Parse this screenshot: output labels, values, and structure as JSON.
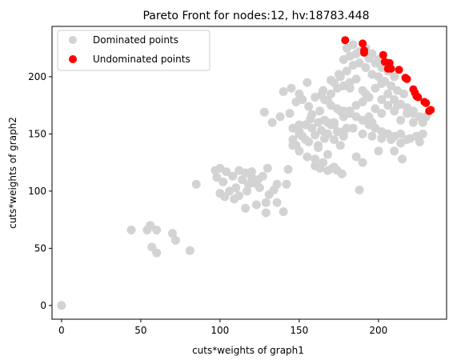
{
  "chart_data": {
    "type": "scatter",
    "title": "Pareto Front for nodes:12, hv:18783.448",
    "xlabel": "cuts*weights of graph1",
    "ylabel": "cuts*weights of graph2",
    "xlim": [
      -6,
      243
    ],
    "ylim": [
      -12,
      244
    ],
    "xticks": [
      0,
      50,
      100,
      150,
      200
    ],
    "yticks": [
      0,
      50,
      100,
      150,
      200
    ],
    "grid": false,
    "legend_position": "top-left",
    "colors": {
      "dominated": "#d3d3d3",
      "undominated": "#ff0000"
    },
    "series": [
      {
        "name": "Dominated points",
        "color": "#d3d3d3",
        "x": [
          0,
          44,
          54,
          56,
          60,
          57,
          60,
          70,
          72,
          81,
          85,
          97,
          98,
          100,
          102,
          104,
          106,
          108,
          110,
          112,
          114,
          116,
          118,
          120,
          100,
          103,
          109,
          112,
          117,
          122,
          125,
          127,
          129,
          131,
          134,
          136,
          120,
          124,
          130,
          143,
          116,
          123,
          129,
          136,
          140,
          142,
          144,
          146,
          148,
          150,
          152,
          154,
          156,
          158,
          160,
          162,
          164,
          166,
          168,
          170,
          172,
          174,
          176,
          178,
          180,
          146,
          150,
          155,
          160,
          162,
          165,
          168,
          171,
          160,
          163,
          168,
          172,
          177,
          174,
          150,
          157,
          163,
          172,
          178,
          182,
          186,
          190,
          194,
          198,
          202,
          206,
          210,
          214,
          218,
          222,
          226,
          166,
          170,
          174,
          178,
          182,
          186,
          190,
          194,
          198,
          202,
          206,
          210,
          214,
          218,
          222,
          176,
          180,
          184,
          188,
          192,
          196,
          200,
          204,
          208,
          212,
          216,
          178,
          182,
          186,
          190,
          194,
          198,
          202,
          206,
          210,
          180,
          184,
          188,
          192,
          196,
          200,
          204,
          170,
          174,
          178,
          182,
          186,
          190,
          194,
          198,
          202,
          206,
          210,
          214,
          218,
          224,
          228,
          166,
          172,
          178,
          184,
          190,
          196,
          202,
          208,
          214,
          220,
          226,
          172,
          182,
          192,
          202,
          212,
          222,
          230,
          228,
          186,
          176,
          190,
          165,
          170,
          175,
          188,
          210,
          215,
          128,
          133,
          138,
          155,
          140,
          145,
          150,
          148,
          152,
          160,
          164,
          168,
          156,
          146,
          158,
          168,
          150,
          154,
          162,
          196,
          200
        ],
        "y": [
          0,
          66,
          66,
          70,
          66,
          51,
          46,
          63,
          57,
          48,
          106,
          118,
          112,
          120,
          108,
          117,
          100,
          113,
          103,
          118,
          110,
          116,
          106,
          112,
          98,
          95,
          93,
          96,
          100,
          107,
          103,
          113,
          90,
          97,
          101,
          106,
          117,
          110,
          120,
          119,
          85,
          88,
          81,
          90,
          82,
          106,
          168,
          145,
          140,
          152,
          148,
          158,
          143,
          155,
          149,
          160,
          153,
          146,
          150,
          158,
          145,
          152,
          140,
          148,
          155,
          140,
          135,
          130,
          128,
          138,
          125,
          132,
          120,
          122,
          120,
          118,
          121,
          115,
          118,
          158,
          163,
          170,
          160,
          165,
          170,
          175,
          178,
          165,
          172,
          168,
          175,
          170,
          162,
          168,
          160,
          165,
          180,
          185,
          190,
          192,
          195,
          198,
          188,
          182,
          190,
          194,
          185,
          180,
          176,
          173,
          168,
          200,
          205,
          210,
          212,
          208,
          202,
          200,
          196,
          192,
          188,
          185,
          215,
          218,
          220,
          222,
          216,
          212,
          208,
          205,
          200,
          225,
          228,
          222,
          225,
          220,
          215,
          210,
          175,
          172,
          170,
          168,
          165,
          162,
          158,
          155,
          152,
          150,
          148,
          150,
          145,
          148,
          150,
          162,
          158,
          152,
          155,
          150,
          148,
          146,
          145,
          142,
          146,
          143,
          195,
          190,
          185,
          180,
          175,
          170,
          165,
          160,
          130,
          170,
          125,
          188,
          197,
          202,
          101,
          135,
          128,
          169,
          160,
          165,
          195,
          187,
          190,
          185,
          178,
          180,
          182,
          184,
          179,
          174,
          155,
          167,
          160,
          150,
          145,
          140,
          160,
          135
        ]
      },
      {
        "name": "Undominated points",
        "color": "#ff0000",
        "x": [
          179,
          190,
          191,
          191,
          203,
          204,
          206,
          207,
          208,
          213,
          217,
          218,
          222,
          223,
          224,
          225,
          229,
          230,
          233,
          232
        ],
        "y": [
          232,
          229,
          223,
          221,
          219,
          213,
          207,
          212,
          207,
          206,
          199,
          198,
          189,
          186,
          183,
          182,
          178,
          177,
          171,
          170
        ]
      }
    ]
  }
}
